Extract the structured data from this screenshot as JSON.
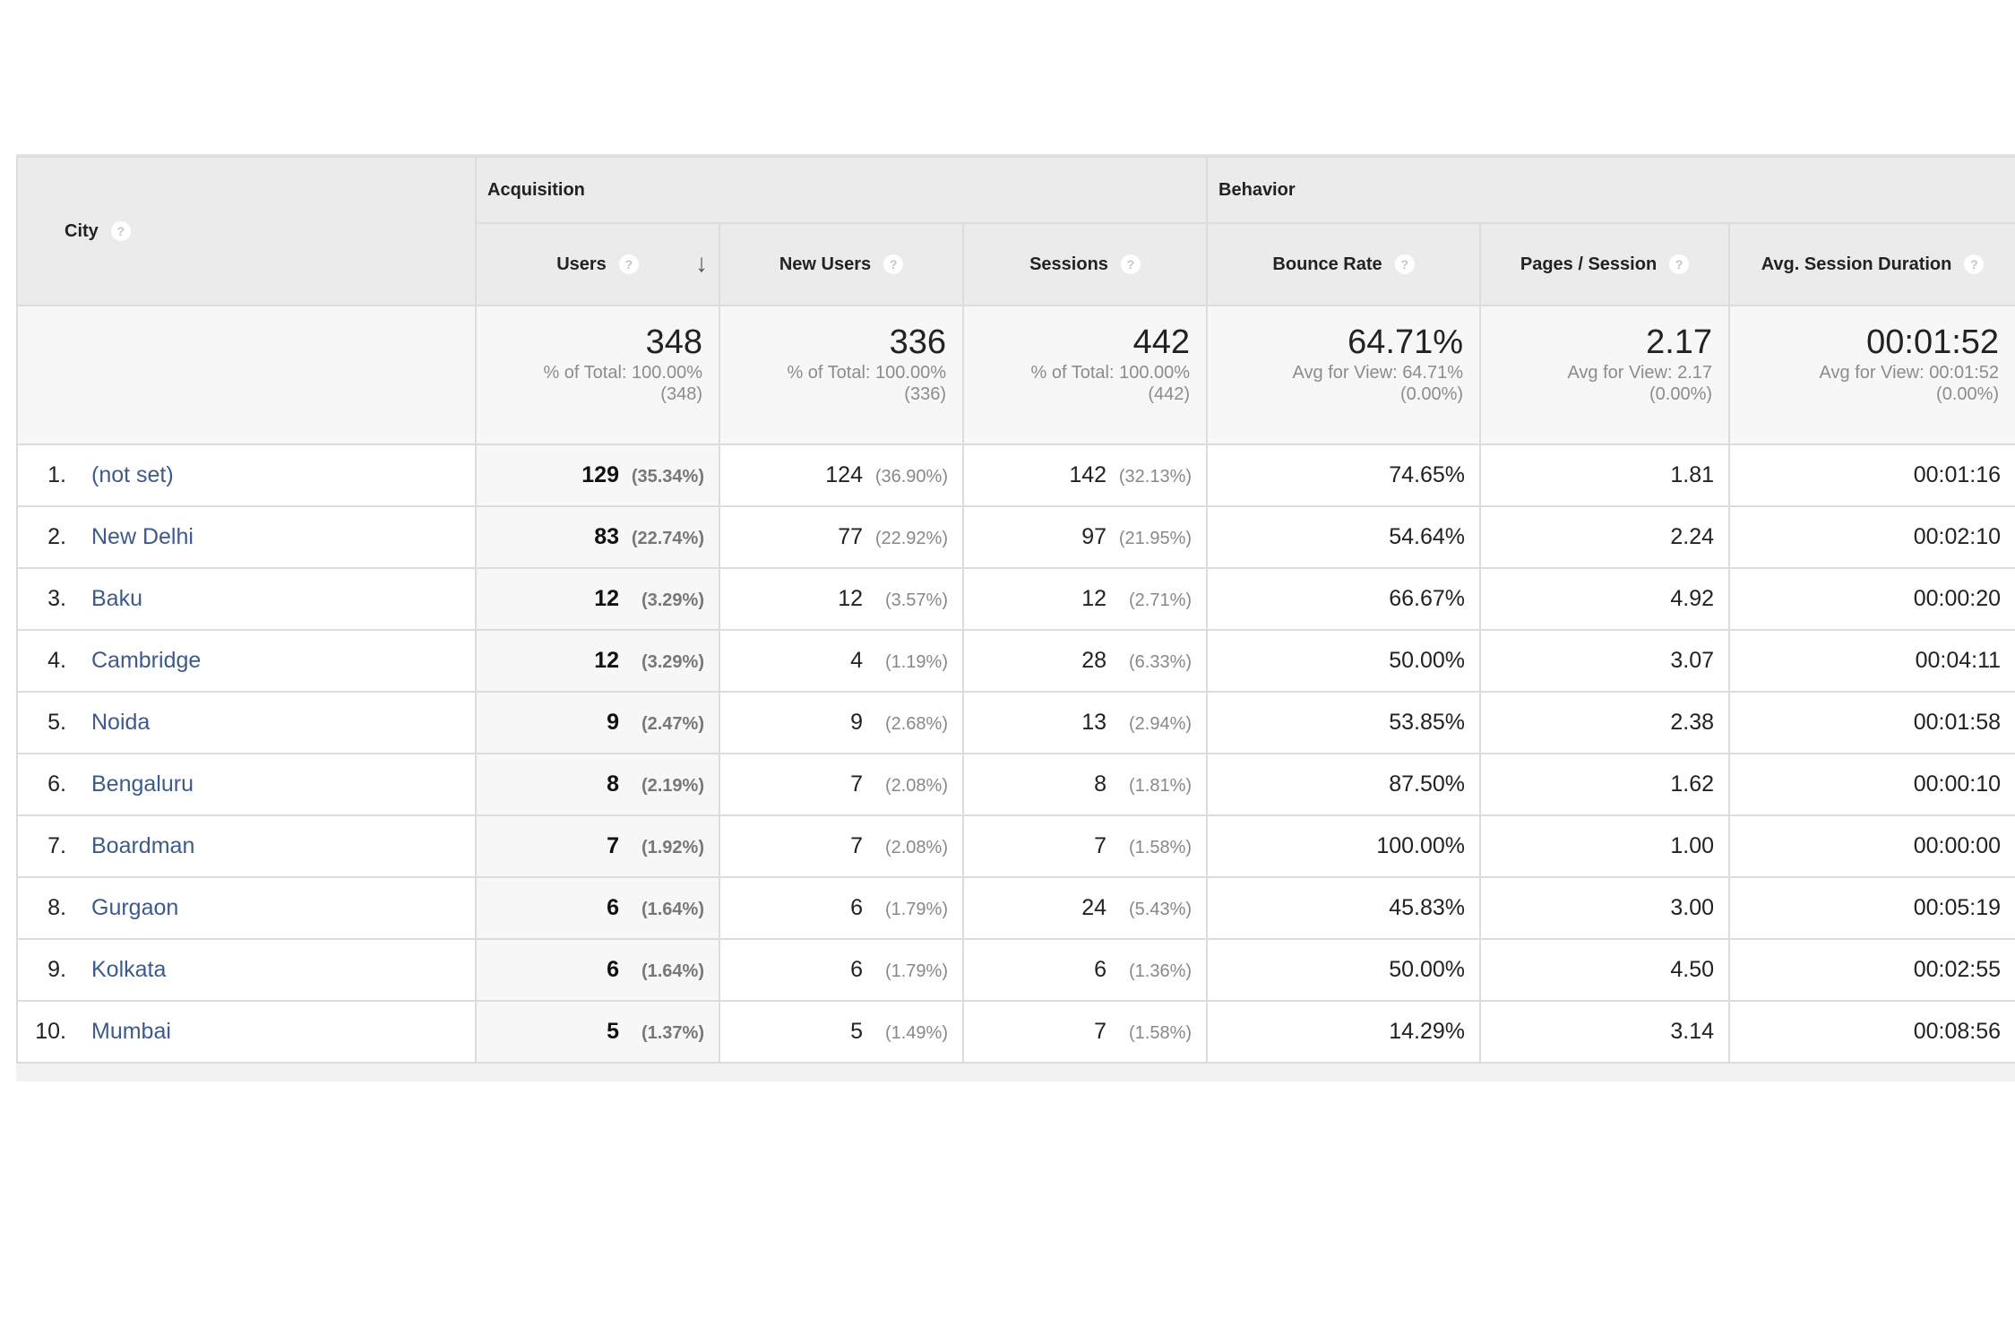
{
  "headers": {
    "city": "City",
    "acquisition": "Acquisition",
    "behavior": "Behavior",
    "users": "Users",
    "new_users": "New Users",
    "sessions": "Sessions",
    "bounce_rate": "Bounce Rate",
    "pages_session": "Pages / Session",
    "avg_session_duration": "Avg. Session Duration",
    "help_glyph": "?",
    "sort_glyph": "↓"
  },
  "totals": {
    "users": {
      "value": "348",
      "line1": "% of Total: 100.00%",
      "line2": "(348)"
    },
    "new_users": {
      "value": "336",
      "line1": "% of Total: 100.00%",
      "line2": "(336)"
    },
    "sessions": {
      "value": "442",
      "line1": "% of Total: 100.00%",
      "line2": "(442)"
    },
    "bounce_rate": {
      "value": "64.71%",
      "line1": "Avg for View: 64.71%",
      "line2": "(0.00%)"
    },
    "pages_session": {
      "value": "2.17",
      "line1": "Avg for View: 2.17",
      "line2": "(0.00%)"
    },
    "avg_session_duration": {
      "value": "00:01:52",
      "line1": "Avg for View: 00:01:52",
      "line2": "(0.00%)"
    }
  },
  "rows": [
    {
      "num": "1.",
      "city": "(not set)",
      "users": "129",
      "users_pct": "(35.34%)",
      "new_users": "124",
      "new_users_pct": "(36.90%)",
      "sessions": "142",
      "sessions_pct": "(32.13%)",
      "bounce_rate": "74.65%",
      "pages_session": "1.81",
      "avg_session_duration": "00:01:16"
    },
    {
      "num": "2.",
      "city": "New Delhi",
      "users": "83",
      "users_pct": "(22.74%)",
      "new_users": "77",
      "new_users_pct": "(22.92%)",
      "sessions": "97",
      "sessions_pct": "(21.95%)",
      "bounce_rate": "54.64%",
      "pages_session": "2.24",
      "avg_session_duration": "00:02:10"
    },
    {
      "num": "3.",
      "city": "Baku",
      "users": "12",
      "users_pct": "(3.29%)",
      "new_users": "12",
      "new_users_pct": "(3.57%)",
      "sessions": "12",
      "sessions_pct": "(2.71%)",
      "bounce_rate": "66.67%",
      "pages_session": "4.92",
      "avg_session_duration": "00:00:20"
    },
    {
      "num": "4.",
      "city": "Cambridge",
      "users": "12",
      "users_pct": "(3.29%)",
      "new_users": "4",
      "new_users_pct": "(1.19%)",
      "sessions": "28",
      "sessions_pct": "(6.33%)",
      "bounce_rate": "50.00%",
      "pages_session": "3.07",
      "avg_session_duration": "00:04:11"
    },
    {
      "num": "5.",
      "city": "Noida",
      "users": "9",
      "users_pct": "(2.47%)",
      "new_users": "9",
      "new_users_pct": "(2.68%)",
      "sessions": "13",
      "sessions_pct": "(2.94%)",
      "bounce_rate": "53.85%",
      "pages_session": "2.38",
      "avg_session_duration": "00:01:58"
    },
    {
      "num": "6.",
      "city": "Bengaluru",
      "users": "8",
      "users_pct": "(2.19%)",
      "new_users": "7",
      "new_users_pct": "(2.08%)",
      "sessions": "8",
      "sessions_pct": "(1.81%)",
      "bounce_rate": "87.50%",
      "pages_session": "1.62",
      "avg_session_duration": "00:00:10"
    },
    {
      "num": "7.",
      "city": "Boardman",
      "users": "7",
      "users_pct": "(1.92%)",
      "new_users": "7",
      "new_users_pct": "(2.08%)",
      "sessions": "7",
      "sessions_pct": "(1.58%)",
      "bounce_rate": "100.00%",
      "pages_session": "1.00",
      "avg_session_duration": "00:00:00"
    },
    {
      "num": "8.",
      "city": "Gurgaon",
      "users": "6",
      "users_pct": "(1.64%)",
      "new_users": "6",
      "new_users_pct": "(1.79%)",
      "sessions": "24",
      "sessions_pct": "(5.43%)",
      "bounce_rate": "45.83%",
      "pages_session": "3.00",
      "avg_session_duration": "00:05:19"
    },
    {
      "num": "9.",
      "city": "Kolkata",
      "users": "6",
      "users_pct": "(1.64%)",
      "new_users": "6",
      "new_users_pct": "(1.79%)",
      "sessions": "6",
      "sessions_pct": "(1.36%)",
      "bounce_rate": "50.00%",
      "pages_session": "4.50",
      "avg_session_duration": "00:02:55"
    },
    {
      "num": "10.",
      "city": "Mumbai",
      "users": "5",
      "users_pct": "(1.37%)",
      "new_users": "5",
      "new_users_pct": "(1.49%)",
      "sessions": "7",
      "sessions_pct": "(1.58%)",
      "bounce_rate": "14.29%",
      "pages_session": "3.14",
      "avg_session_duration": "00:08:56"
    }
  ]
}
